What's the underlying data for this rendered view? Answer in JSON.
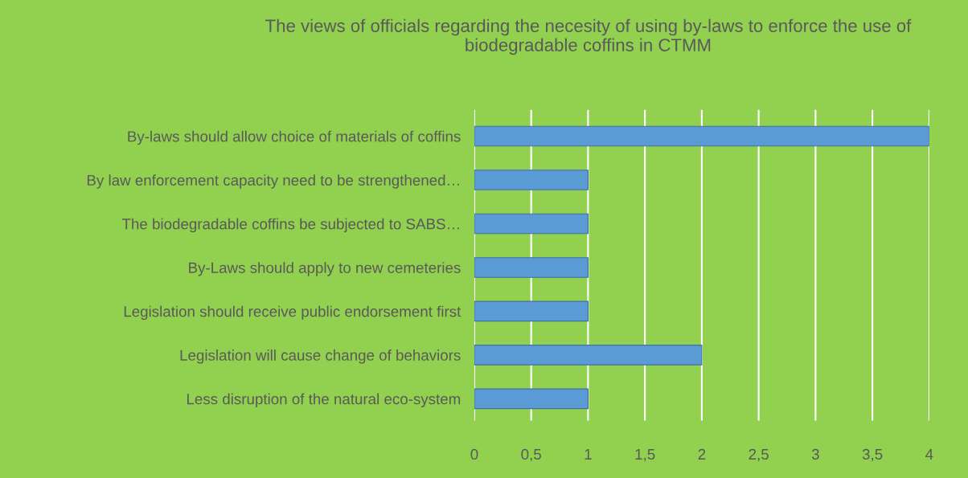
{
  "chart_data": {
    "type": "bar",
    "orientation": "horizontal",
    "title": "The views of officials regarding the necesity of using by-laws to enforce the use of biodegradable coffins in CTMM",
    "categories": [
      "By-laws should allow choice of materials of coffins",
      "By law enforcement capacity need to be strengthened…",
      "The biodegradable coffins be subjected to SABS…",
      "By-Laws should apply to new cemeteries",
      "Legislation should receive public endorsement first",
      "Legislation will cause change of behaviors",
      "Less disruption of the natural eco-system"
    ],
    "values": [
      4,
      1,
      1,
      1,
      1,
      2,
      1
    ],
    "color": "#5b9bd5",
    "xlim": [
      0,
      4
    ],
    "xticks": [
      0,
      {
        "value": 0.5,
        "label": "0,5"
      },
      1,
      {
        "value": 1.5,
        "label": "1,5"
      },
      2,
      {
        "value": 2.5,
        "label": "2,5"
      },
      3,
      {
        "value": 3.5,
        "label": "3,5"
      },
      4
    ],
    "grid": "x"
  }
}
